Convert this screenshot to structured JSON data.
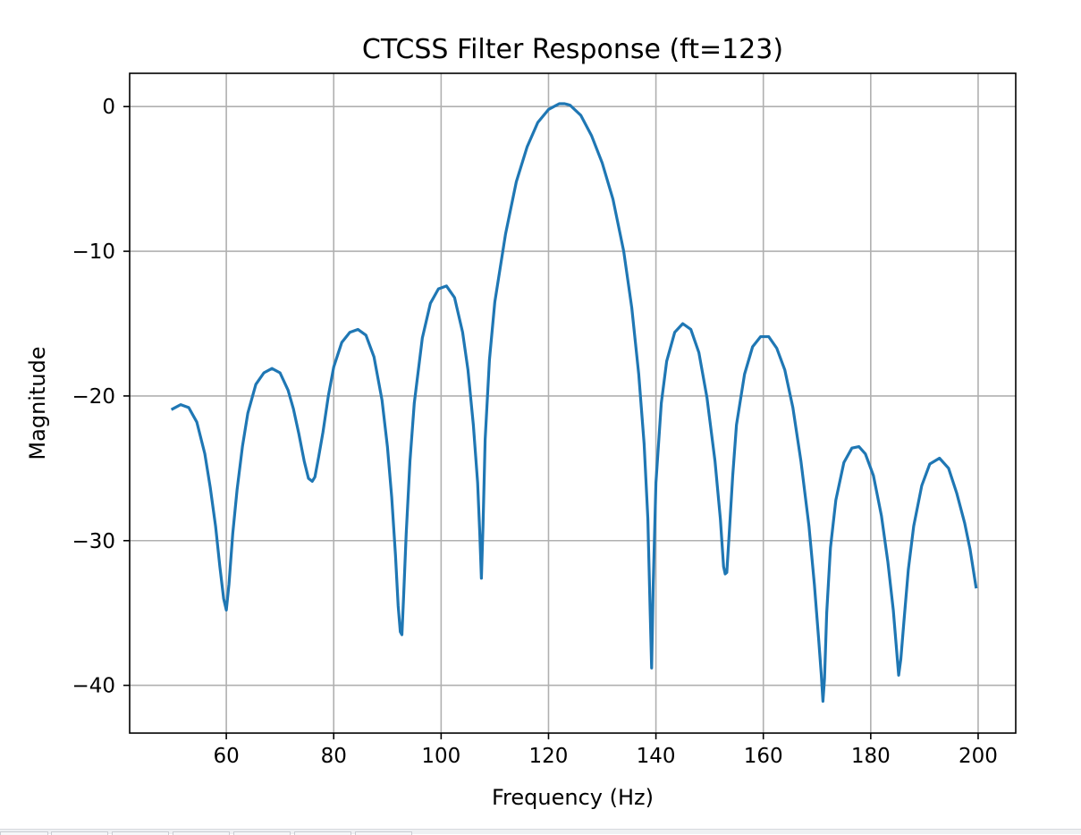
{
  "chart_data": {
    "type": "line",
    "title": "CTCSS Filter Response (ft=123)",
    "xlabel": "Frequency (Hz)",
    "ylabel": "Magnitude",
    "xlim": [
      42,
      207
    ],
    "ylim": [
      -43.3,
      2.3
    ],
    "xticks": [
      60,
      80,
      100,
      120,
      140,
      160,
      180,
      200
    ],
    "yticks": [
      0,
      -10,
      -20,
      -30,
      -40
    ],
    "xtick_labels": [
      "60",
      "80",
      "100",
      "120",
      "140",
      "160",
      "180",
      "200"
    ],
    "ytick_labels": [
      "0",
      "−10",
      "−20",
      "−30",
      "−40"
    ],
    "grid": true,
    "line_color": "#1f77b4",
    "series": [
      {
        "x": [
          50,
          51.5,
          53,
          54.5,
          56,
          57,
          58,
          58.8,
          59.5,
          60.0,
          60.5,
          61.2,
          62,
          63,
          64,
          65.5,
          67,
          68.5,
          70,
          71.5,
          72.5,
          73.5,
          74.5,
          75.3,
          76.0,
          76.5,
          77.2,
          78,
          79,
          80,
          81.5,
          83,
          84.5,
          86,
          87.5,
          89,
          90,
          90.8,
          91.5,
          92.0,
          92.4,
          92.7,
          93.0,
          93.5,
          94.2,
          95,
          96.5,
          98,
          99.5,
          101,
          102.5,
          104,
          105,
          106,
          106.8,
          107.2,
          107.5,
          107.8,
          108.2,
          109,
          110,
          112,
          114,
          116,
          118,
          120,
          122,
          123,
          124,
          126,
          128,
          130,
          132,
          134,
          135.5,
          136.8,
          137.8,
          138.5,
          138.9,
          139.2,
          139.5,
          140,
          141,
          142,
          143.5,
          145,
          146.5,
          148,
          149.5,
          151,
          152.0,
          152.6,
          152.9,
          153.2,
          153.6,
          154.3,
          155,
          156.5,
          158,
          159.5,
          161,
          162.5,
          164,
          165.5,
          167,
          168.5,
          169.5,
          170.3,
          170.8,
          171.1,
          171.4,
          171.8,
          172.5,
          173.5,
          175,
          176.5,
          177.8,
          179,
          180.5,
          182,
          183.2,
          184.2,
          184.8,
          185.2,
          185.6,
          186.2,
          187,
          188,
          189.5,
          191,
          192.8,
          194.5,
          196,
          197.5,
          198.5,
          199.6
        ],
        "y": [
          -20.9,
          -20.6,
          -20.8,
          -21.8,
          -24.0,
          -26.3,
          -29.0,
          -31.8,
          -34.0,
          -34.8,
          -33.0,
          -29.5,
          -26.5,
          -23.5,
          -21.2,
          -19.2,
          -18.4,
          -18.1,
          -18.4,
          -19.6,
          -20.9,
          -22.6,
          -24.5,
          -25.7,
          -25.9,
          -25.6,
          -24.2,
          -22.5,
          -20.0,
          -18.0,
          -16.3,
          -15.6,
          -15.4,
          -15.8,
          -17.3,
          -20.3,
          -23.5,
          -27.0,
          -31.0,
          -34.5,
          -36.3,
          -36.5,
          -34.0,
          -29.5,
          -24.5,
          -20.5,
          -16.0,
          -13.6,
          -12.6,
          -12.4,
          -13.2,
          -15.6,
          -18.2,
          -22.0,
          -26.0,
          -29.5,
          -32.6,
          -29.0,
          -23.0,
          -17.5,
          -13.5,
          -8.8,
          -5.2,
          -2.8,
          -1.1,
          -0.2,
          0.2,
          0.2,
          0.1,
          -0.6,
          -2.0,
          -3.9,
          -6.4,
          -10.0,
          -13.9,
          -18.5,
          -23.3,
          -28.5,
          -34.5,
          -38.8,
          -33.0,
          -26.0,
          -20.5,
          -17.6,
          -15.6,
          -15.0,
          -15.4,
          -17.0,
          -20.1,
          -24.5,
          -28.5,
          -31.8,
          -32.3,
          -32.2,
          -29.8,
          -25.5,
          -22.0,
          -18.5,
          -16.6,
          -15.9,
          -15.9,
          -16.7,
          -18.2,
          -20.8,
          -24.5,
          -29.0,
          -33.0,
          -36.8,
          -39.3,
          -41.1,
          -39.5,
          -35.0,
          -30.5,
          -27.2,
          -24.6,
          -23.6,
          -23.5,
          -24.0,
          -25.5,
          -28.3,
          -31.5,
          -34.8,
          -37.5,
          -39.3,
          -38.2,
          -35.5,
          -32.0,
          -29.0,
          -26.2,
          -24.7,
          -24.3,
          -25.0,
          -26.7,
          -28.8,
          -30.6,
          -33.2
        ]
      }
    ]
  }
}
